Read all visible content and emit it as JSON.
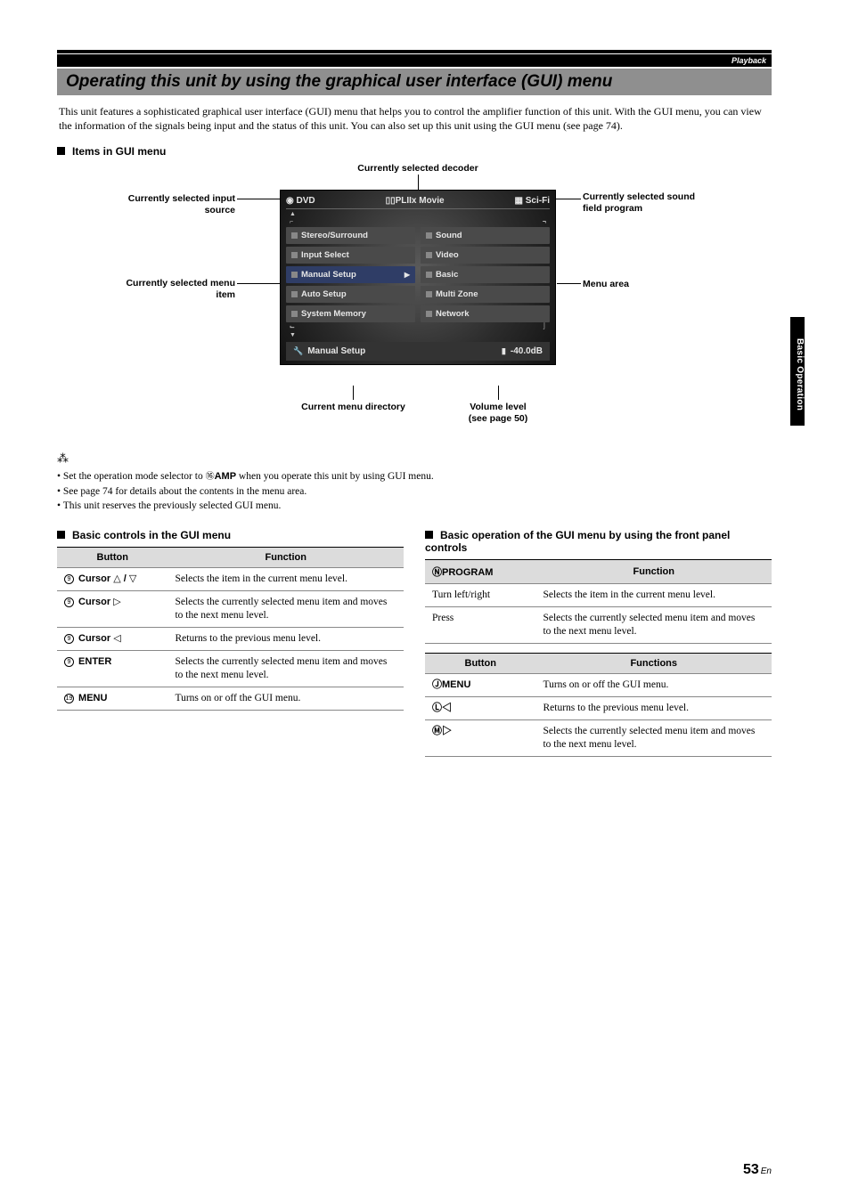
{
  "header": {
    "breadcrumb": "Playback",
    "title": "Operating this unit by using the graphical user interface (GUI) menu"
  },
  "intro": "This unit features a sophisticated graphical user interface (GUI) menu that helps you to control the amplifier function of this unit. With the GUI menu, you can view the information of the signals being input and the status of this unit. You can also set up this unit using the GUI menu (see page 74).",
  "sections": {
    "items_heading": "Items in GUI menu",
    "basic_controls_heading": "Basic controls in the GUI menu",
    "front_panel_heading": "Basic operation of the GUI menu by using the front panel controls"
  },
  "diagram": {
    "labels": {
      "decoder": "Currently selected decoder",
      "input_source": "Currently selected input source",
      "sound_field": "Currently selected sound field program",
      "menu_item": "Currently selected menu item",
      "menu_area": "Menu area",
      "current_dir": "Current menu directory",
      "volume": "Volume level (see page 50)"
    },
    "gui": {
      "top_left": "DVD",
      "top_mid": "▯▯PLIIx Movie",
      "top_right": "Sci-Fi",
      "left_items": [
        "Stereo/Surround",
        "Input Select",
        "Manual Setup",
        "Auto Setup",
        "System Memory"
      ],
      "right_items": [
        "Sound",
        "Video",
        "Basic",
        "Multi Zone",
        "Network"
      ],
      "selected_index": 2,
      "footer_left": "Manual Setup",
      "footer_right": "-40.0dB"
    }
  },
  "notes": {
    "bullets": [
      "Set the operation mode selector to ⑯AMP when you operate this unit by using GUI menu.",
      "See page 74 for details about the contents in the menu area.",
      "This unit reserves the previously selected GUI menu."
    ]
  },
  "tables": {
    "left": {
      "headers": [
        "Button",
        "Function"
      ],
      "rows": [
        {
          "btn_ref": "⑨",
          "btn": "Cursor △ / ▽",
          "fn": "Selects the item in the current menu level."
        },
        {
          "btn_ref": "⑨",
          "btn": "Cursor ▷",
          "fn": "Selects the currently selected menu item and moves to the next menu level."
        },
        {
          "btn_ref": "⑨",
          "btn": "Cursor ◁",
          "fn": "Returns to the previous menu level."
        },
        {
          "btn_ref": "⑨",
          "btn": "ENTER",
          "fn": "Selects the currently selected menu item and moves to the next menu level."
        },
        {
          "btn_ref": "⑲",
          "btn": "MENU",
          "fn": "Turns on or off the GUI menu."
        }
      ]
    },
    "right_a": {
      "headers": [
        "ⓃPROGRAM",
        "Function"
      ],
      "rows": [
        {
          "btn": "Turn left/right",
          "fn": "Selects the item in the current menu level."
        },
        {
          "btn": "Press",
          "fn": "Selects the currently selected menu item and moves to the next menu level."
        }
      ]
    },
    "right_b": {
      "headers": [
        "Button",
        "Functions"
      ],
      "rows": [
        {
          "btn": "ⒿMENU",
          "fn": "Turns on or off the GUI menu."
        },
        {
          "btn": "Ⓛ◁",
          "fn": "Returns to the previous menu level."
        },
        {
          "btn": "Ⓜ▷",
          "fn": "Selects the currently selected menu item and moves to the next menu level."
        }
      ]
    }
  },
  "side_tab": "Basic Operation",
  "footer": {
    "page": "53",
    "lang": "En"
  }
}
